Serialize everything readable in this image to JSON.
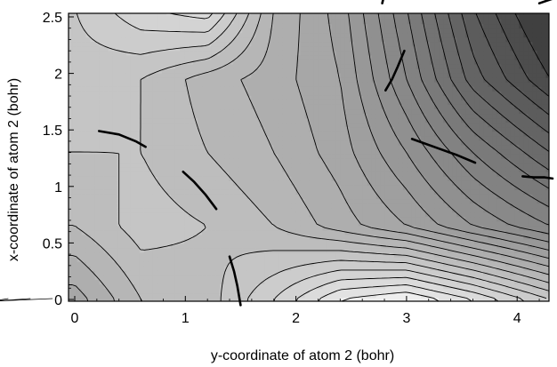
{
  "chart_data": {
    "type": "heatmap",
    "subtype": "contour",
    "xlabel": "y-coordinate of atom 2  (bohr)",
    "ylabel": "x-coordinate of atom 2  (bohr)",
    "xlim": [
      0,
      4.3
    ],
    "ylim": [
      0,
      2.6
    ],
    "x_ticks": [
      "0",
      "1",
      "2",
      "3",
      "4"
    ],
    "y_ticks": [
      "0",
      "0.5",
      "1",
      "1.5",
      "2",
      "2.5"
    ],
    "colormap": "grayscale (light = low, dark = high)",
    "frame_color": "#000000",
    "grid": false,
    "contour_levels": [
      -0.4,
      -0.3,
      -0.2,
      -0.1,
      0.0,
      0.1,
      0.2,
      0.3,
      0.4,
      0.5,
      0.6,
      0.7,
      0.8,
      0.9,
      1.0,
      1.1,
      1.2,
      1.3,
      1.4,
      1.5,
      1.6,
      1.7
    ],
    "value_range": [
      -0.6,
      1.95
    ],
    "field": {
      "x": [
        0,
        0.6,
        1.2,
        1.8,
        2.4,
        3.0,
        3.6,
        4.3
      ],
      "y": [
        0,
        0.65,
        1.3,
        1.95,
        2.6
      ],
      "z": [
        [
          0.45,
          0.2,
          0.15,
          -0.1,
          -0.4,
          -0.5,
          -0.3,
          0.0
        ],
        [
          0.2,
          0.05,
          0.1,
          0.2,
          0.35,
          0.5,
          0.7,
          0.9
        ],
        [
          0.1,
          0.1,
          0.2,
          0.3,
          0.45,
          0.7,
          1.0,
          1.3
        ],
        [
          0.05,
          0.1,
          0.25,
          0.35,
          0.5,
          0.9,
          1.35,
          1.7
        ],
        [
          0.0,
          -0.2,
          -0.3,
          0.3,
          0.55,
          1.0,
          1.5,
          1.9
        ]
      ]
    },
    "bold_curves": [
      {
        "points": [
          [
            0.22,
            1.49
          ],
          [
            0.4,
            1.46
          ],
          [
            0.55,
            1.4
          ],
          [
            0.64,
            1.35
          ]
        ]
      },
      {
        "points": [
          [
            0.98,
            1.13
          ],
          [
            1.08,
            1.04
          ],
          [
            1.18,
            0.93
          ],
          [
            1.28,
            0.8
          ]
        ]
      },
      {
        "points": [
          [
            1.4,
            0.38
          ],
          [
            1.44,
            0.25
          ],
          [
            1.47,
            0.12
          ],
          [
            1.5,
            -0.05
          ]
        ]
      },
      {
        "points": [
          [
            2.81,
            1.85
          ],
          [
            2.87,
            1.95
          ],
          [
            2.92,
            2.06
          ],
          [
            2.98,
            2.2
          ]
        ]
      },
      {
        "points": [
          [
            3.05,
            1.42
          ],
          [
            3.25,
            1.35
          ],
          [
            3.45,
            1.28
          ],
          [
            3.62,
            1.21
          ]
        ]
      },
      {
        "points": [
          [
            4.05,
            1.09
          ],
          [
            4.15,
            1.08
          ],
          [
            4.25,
            1.08
          ],
          [
            4.32,
            1.07
          ]
        ]
      },
      {
        "points": [
          [
            2.78,
            2.62
          ],
          [
            2.8,
            2.7
          ]
        ]
      },
      {
        "points": [
          [
            4.2,
            2.62
          ],
          [
            4.32,
            2.66
          ]
        ]
      }
    ]
  }
}
